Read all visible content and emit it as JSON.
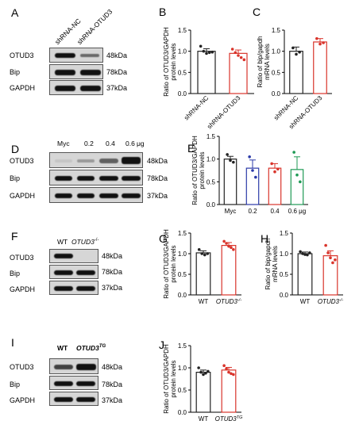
{
  "panels": {
    "A": {
      "letter": "A",
      "lanes": [
        "shRNA-NC",
        "shRNA-OTUD3"
      ],
      "rows": [
        {
          "protein": "OTUD3",
          "kda": "48kDa",
          "intensity": [
            1.0,
            0.45
          ]
        },
        {
          "protein": "Bip",
          "kda": "78kDa",
          "intensity": [
            1.0,
            1.0
          ]
        },
        {
          "protein": "GAPDH",
          "kda": "37kDa",
          "intensity": [
            1.0,
            1.0
          ]
        }
      ]
    },
    "D": {
      "letter": "D",
      "lanes": [
        "Myc",
        "0.2",
        "0.4",
        "0.6",
        "μg"
      ],
      "rows": [
        {
          "protein": "OTUD3",
          "kda": "48kDa",
          "intensity": [
            0.05,
            0.25,
            0.55,
            1.0
          ]
        },
        {
          "protein": "Bip",
          "kda": "78kDa",
          "intensity": [
            1.0,
            1.0,
            1.0,
            1.0
          ]
        },
        {
          "protein": "GAPDH",
          "kda": "37kDa",
          "intensity": [
            1.0,
            1.0,
            1.0,
            1.0
          ]
        }
      ]
    },
    "F": {
      "letter": "F",
      "lanes": [
        "WT",
        "OTUD3",
        "-/-"
      ],
      "rows": [
        {
          "protein": "OTUD3",
          "kda": "48kDa",
          "intensity": [
            1.0,
            0.0
          ]
        },
        {
          "protein": "Bip",
          "kda": "78kDa",
          "intensity": [
            1.0,
            1.0
          ]
        },
        {
          "protein": "GAPDH",
          "kda": "37kDa",
          "intensity": [
            1.0,
            1.0
          ]
        }
      ]
    },
    "I": {
      "letter": "I",
      "lanes": [
        "WT",
        "OTUD3",
        "TG"
      ],
      "rows": [
        {
          "protein": "OTUD3",
          "kda": "48kDa",
          "intensity": [
            0.8,
            1.0
          ]
        },
        {
          "protein": "Bip",
          "kda": "78kDa",
          "intensity": [
            1.0,
            1.0
          ]
        },
        {
          "protein": "GAPDH",
          "kda": "37kDa",
          "intensity": [
            1.0,
            1.0
          ]
        }
      ]
    }
  },
  "chart_data": [
    {
      "letter": "B",
      "type": "bar",
      "ylabel": [
        "Ratio of OTUD3/GAPDH",
        "protein levels"
      ],
      "ylim": [
        0,
        1.5
      ],
      "yticks": [
        "0.0",
        "0.5",
        "1.0",
        "1.5"
      ],
      "categories": [
        "shRNA-NC",
        "shRNA-OTUD3"
      ],
      "category_italic": [
        false,
        false
      ],
      "category_sup": [
        "",
        ""
      ],
      "rotate": true,
      "values": [
        1.0,
        0.95
      ],
      "errors": [
        0.06,
        0.08
      ],
      "points": [
        [
          1.12,
          1.0,
          0.95,
          0.97,
          0.98
        ],
        [
          1.05,
          0.97,
          0.9,
          0.85,
          0.8
        ]
      ],
      "colors": [
        "#222222",
        "#d9342b"
      ]
    },
    {
      "letter": "C",
      "type": "bar",
      "ylabel": [
        "Ratio of bip/gapdh",
        "mRNA levels"
      ],
      "ylim": [
        0,
        1.5
      ],
      "yticks": [
        "0.0",
        "0.5",
        "1.0",
        "1.5"
      ],
      "categories": [
        "shRNA-NC",
        "shRNA-OTUD3"
      ],
      "category_italic": [
        false,
        false
      ],
      "category_sup": [
        "",
        ""
      ],
      "rotate": true,
      "values": [
        1.0,
        1.22
      ],
      "errors": [
        0.1,
        0.08
      ],
      "points": [
        [
          1.08,
          0.93,
          0.98
        ],
        [
          1.3,
          1.17,
          1.2
        ]
      ],
      "colors": [
        "#222222",
        "#d9342b"
      ]
    },
    {
      "letter": "E",
      "type": "bar",
      "ylabel": [
        "Ratio of OTUD3/GAPDH",
        "protein levels"
      ],
      "ylim": [
        0,
        1.5
      ],
      "yticks": [
        "0.0",
        "0.5",
        "1.0",
        "1.5"
      ],
      "categories": [
        "Myc",
        "0.2",
        "0.4",
        "0.6 μg"
      ],
      "category_italic": [
        false,
        false,
        false,
        false
      ],
      "category_sup": [
        "",
        "",
        "",
        ""
      ],
      "rotate": false,
      "values": [
        1.0,
        0.8,
        0.8,
        0.77
      ],
      "errors": [
        0.06,
        0.18,
        0.1,
        0.28
      ],
      "points": [
        [
          1.1,
          0.97,
          0.93
        ],
        [
          1.05,
          0.75,
          0.6
        ],
        [
          0.9,
          0.72,
          0.78
        ],
        [
          1.15,
          0.65,
          0.5
        ]
      ],
      "colors": [
        "#222222",
        "#2b3aa8",
        "#d9342b",
        "#1f9a55"
      ]
    },
    {
      "letter": "G",
      "type": "bar",
      "ylabel": [
        "Ratio of OTUD3/GAPDH",
        "protein levels"
      ],
      "ylim": [
        0,
        1.5
      ],
      "yticks": [
        "0.0",
        "0.5",
        "1.0",
        "1.5"
      ],
      "categories": [
        "WT",
        "OTUD3"
      ],
      "category_italic": [
        false,
        true
      ],
      "category_sup": [
        "",
        "-/-"
      ],
      "rotate": false,
      "values": [
        1.02,
        1.2
      ],
      "errors": [
        0.05,
        0.07
      ],
      "points": [
        [
          1.1,
          1.0,
          0.97,
          1.0
        ],
        [
          1.3,
          1.25,
          1.18,
          1.15,
          1.1
        ]
      ],
      "colors": [
        "#222222",
        "#d9342b"
      ]
    },
    {
      "letter": "H",
      "type": "bar",
      "ylabel": [
        "Ratio of bip/gapdh",
        "mRNA levels"
      ],
      "ylim": [
        0,
        1.5
      ],
      "yticks": [
        "0.0",
        "0.5",
        "1.0",
        "1.5"
      ],
      "categories": [
        "WT",
        "OTUD3"
      ],
      "category_italic": [
        false,
        true
      ],
      "category_sup": [
        "",
        "-/-"
      ],
      "rotate": false,
      "values": [
        1.0,
        0.95
      ],
      "errors": [
        0.04,
        0.12
      ],
      "points": [
        [
          1.05,
          1.0,
          0.98,
          0.97,
          1.02
        ],
        [
          1.2,
          1.02,
          0.9,
          0.78,
          0.85
        ]
      ],
      "colors": [
        "#222222",
        "#d9342b"
      ]
    },
    {
      "letter": "J",
      "type": "bar",
      "ylabel": [
        "Ratio of OTUD3/GAPDH",
        "protein levels"
      ],
      "ylim": [
        0,
        1.5
      ],
      "yticks": [
        "0.0",
        "0.5",
        "1.0",
        "1.5"
      ],
      "categories": [
        "WT",
        "OTUD3"
      ],
      "category_italic": [
        false,
        true
      ],
      "category_sup": [
        "",
        "TG"
      ],
      "rotate": false,
      "values": [
        0.9,
        0.95
      ],
      "errors": [
        0.05,
        0.06
      ],
      "points": [
        [
          1.0,
          0.9,
          0.85,
          0.88,
          0.92
        ],
        [
          1.05,
          0.98,
          0.9,
          0.87,
          0.85
        ]
      ],
      "colors": [
        "#222222",
        "#d9342b"
      ]
    }
  ]
}
